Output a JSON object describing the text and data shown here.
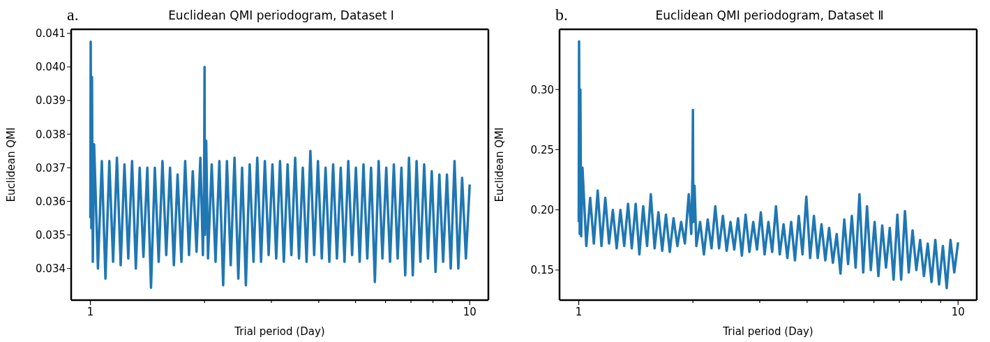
{
  "chart_data": [
    {
      "type": "line",
      "title": "Euclidean QMI periodogram, Dataset Ⅰ",
      "annotations": [
        "a."
      ],
      "xlabel": "Trial period (Day)",
      "ylabel": "Euclidean QMI",
      "log": "x",
      "x": [
        1,
        1.002,
        1.006,
        1.01,
        1.015,
        1.023,
        1.047,
        1.072,
        1.096,
        1.122,
        1.148,
        1.175,
        1.202,
        1.23,
        1.259,
        1.288,
        1.318,
        1.349,
        1.38,
        1.413,
        1.445,
        1.479,
        1.514,
        1.549,
        1.585,
        1.622,
        1.66,
        1.698,
        1.738,
        1.778,
        1.82,
        1.862,
        1.905,
        1.95,
        1.98,
        1.995,
        2.0,
        2.005,
        2.02,
        2.042,
        2.089,
        2.138,
        2.188,
        2.239,
        2.291,
        2.344,
        2.399,
        2.455,
        2.512,
        2.57,
        2.63,
        2.692,
        2.754,
        2.818,
        2.884,
        2.951,
        3.02,
        3.09,
        3.162,
        3.236,
        3.311,
        3.388,
        3.467,
        3.548,
        3.631,
        3.715,
        3.802,
        3.89,
        3.981,
        4.074,
        4.169,
        4.266,
        4.365,
        4.467,
        4.571,
        4.677,
        4.786,
        4.898,
        5.012,
        5.129,
        5.248,
        5.37,
        5.495,
        5.623,
        5.754,
        5.888,
        6.026,
        6.166,
        6.31,
        6.457,
        6.607,
        6.761,
        6.918,
        7.079,
        7.244,
        7.413,
        7.586,
        7.762,
        7.943,
        8.128,
        8.318,
        8.511,
        8.71,
        8.913,
        9.12,
        9.333,
        9.55,
        9.772,
        10
      ],
      "series": [
        {
          "color": "#1f77b4",
          "values": [
            0.0355,
            0.04075,
            0.0352,
            0.0397,
            0.0342,
            0.0377,
            0.034,
            0.0372,
            0.0337,
            0.0372,
            0.0342,
            0.0373,
            0.0341,
            0.0371,
            0.0343,
            0.0372,
            0.034,
            0.037,
            0.03435,
            0.037,
            0.03343,
            0.037,
            0.0342,
            0.0372,
            0.0344,
            0.037,
            0.0341,
            0.0368,
            0.0342,
            0.0372,
            0.0344,
            0.0369,
            0.0345,
            0.0373,
            0.0344,
            0.0366,
            0.04,
            0.035,
            0.0378,
            0.0343,
            0.0371,
            0.0342,
            0.0372,
            0.0335,
            0.0372,
            0.0341,
            0.0373,
            0.0337,
            0.037,
            0.0335,
            0.0371,
            0.0342,
            0.0373,
            0.0342,
            0.0372,
            0.0344,
            0.0371,
            0.0343,
            0.0372,
            0.0342,
            0.0371,
            0.0344,
            0.0373,
            0.0343,
            0.037,
            0.0342,
            0.0375,
            0.0344,
            0.0372,
            0.0343,
            0.037,
            0.0342,
            0.0371,
            0.0343,
            0.037,
            0.0342,
            0.0372,
            0.0344,
            0.037,
            0.0342,
            0.0371,
            0.0343,
            0.037,
            0.0336,
            0.0372,
            0.0343,
            0.037,
            0.0342,
            0.0371,
            0.0343,
            0.037,
            0.0338,
            0.0373,
            0.0338,
            0.0372,
            0.0342,
            0.0371,
            0.0343,
            0.0369,
            0.0339,
            0.0368,
            0.0342,
            0.0368,
            0.034,
            0.0372,
            0.034,
            0.0367,
            0.0343,
            0.0365
          ]
        }
      ],
      "xlim": [
        0.89,
        11.2
      ],
      "xticks": [
        {
          "value": 1,
          "label": "1"
        },
        {
          "value": 2,
          "label": null
        },
        {
          "value": 3,
          "label": null
        },
        {
          "value": 4,
          "label": null
        },
        {
          "value": 5,
          "label": null
        },
        {
          "value": 6,
          "label": null
        },
        {
          "value": 7,
          "label": null
        },
        {
          "value": 8,
          "label": null
        },
        {
          "value": 9,
          "label": null
        },
        {
          "value": 10,
          "label": "10"
        }
      ],
      "ylim": [
        0.03306,
        0.04112
      ],
      "yticks": [
        {
          "value": 0.034,
          "label": "0.034"
        },
        {
          "value": 0.035,
          "label": "0.035"
        },
        {
          "value": 0.036,
          "label": "0.036"
        },
        {
          "value": 0.037,
          "label": "0.037"
        },
        {
          "value": 0.038,
          "label": "0.038"
        },
        {
          "value": 0.039,
          "label": "0.039"
        },
        {
          "value": 0.04,
          "label": "0.040"
        },
        {
          "value": 0.041,
          "label": "0.041"
        }
      ]
    },
    {
      "type": "line",
      "title": "Euclidean QMI periodogram, Dataset Ⅱ",
      "annotations": [
        "b."
      ],
      "xlabel": "Trial period (Day)",
      "ylabel": "Euclidean QMI",
      "log": "x",
      "x": [
        1,
        1.002,
        1.006,
        1.01,
        1.015,
        1.023,
        1.047,
        1.072,
        1.096,
        1.122,
        1.148,
        1.175,
        1.202,
        1.23,
        1.259,
        1.288,
        1.318,
        1.349,
        1.38,
        1.413,
        1.445,
        1.479,
        1.514,
        1.549,
        1.585,
        1.622,
        1.66,
        1.698,
        1.738,
        1.778,
        1.82,
        1.862,
        1.905,
        1.95,
        1.98,
        1.995,
        2.0,
        2.005,
        2.02,
        2.042,
        2.089,
        2.138,
        2.188,
        2.239,
        2.291,
        2.344,
        2.399,
        2.455,
        2.512,
        2.57,
        2.63,
        2.692,
        2.754,
        2.818,
        2.884,
        2.951,
        3.02,
        3.09,
        3.162,
        3.236,
        3.311,
        3.388,
        3.467,
        3.548,
        3.631,
        3.715,
        3.802,
        3.89,
        3.981,
        4.074,
        4.169,
        4.266,
        4.365,
        4.467,
        4.571,
        4.677,
        4.786,
        4.898,
        5.012,
        5.129,
        5.248,
        5.37,
        5.495,
        5.623,
        5.754,
        5.888,
        6.026,
        6.166,
        6.31,
        6.457,
        6.607,
        6.761,
        6.918,
        7.079,
        7.244,
        7.413,
        7.586,
        7.762,
        7.943,
        8.128,
        8.318,
        8.511,
        8.71,
        8.913,
        9.12,
        9.333,
        9.55,
        9.772,
        10
      ],
      "series": [
        {
          "color": "#1f77b4",
          "values": [
            0.19,
            0.34,
            0.18,
            0.3,
            0.178,
            0.235,
            0.17,
            0.21,
            0.172,
            0.216,
            0.17,
            0.21,
            0.172,
            0.2,
            0.168,
            0.2,
            0.17,
            0.205,
            0.168,
            0.205,
            0.163,
            0.203,
            0.17,
            0.213,
            0.168,
            0.198,
            0.166,
            0.196,
            0.165,
            0.193,
            0.17,
            0.19,
            0.172,
            0.213,
            0.18,
            0.23,
            0.283,
            0.19,
            0.22,
            0.17,
            0.19,
            0.163,
            0.192,
            0.168,
            0.203,
            0.168,
            0.195,
            0.166,
            0.19,
            0.167,
            0.193,
            0.162,
            0.196,
            0.165,
            0.19,
            0.167,
            0.198,
            0.163,
            0.19,
            0.165,
            0.203,
            0.163,
            0.188,
            0.16,
            0.19,
            0.158,
            0.195,
            0.163,
            0.211,
            0.16,
            0.195,
            0.16,
            0.188,
            0.158,
            0.185,
            0.156,
            0.18,
            0.147,
            0.192,
            0.155,
            0.195,
            0.152,
            0.213,
            0.148,
            0.203,
            0.15,
            0.19,
            0.145,
            0.187,
            0.152,
            0.185,
            0.142,
            0.196,
            0.142,
            0.199,
            0.148,
            0.183,
            0.15,
            0.175,
            0.145,
            0.172,
            0.14,
            0.175,
            0.138,
            0.17,
            0.135,
            0.175,
            0.148,
            0.173
          ]
        }
      ],
      "xlim": [
        0.89,
        11.2
      ],
      "xticks": [
        {
          "value": 1,
          "label": "1"
        },
        {
          "value": 2,
          "label": null
        },
        {
          "value": 3,
          "label": null
        },
        {
          "value": 4,
          "label": null
        },
        {
          "value": 5,
          "label": null
        },
        {
          "value": 6,
          "label": null
        },
        {
          "value": 7,
          "label": null
        },
        {
          "value": 8,
          "label": null
        },
        {
          "value": 9,
          "label": null
        },
        {
          "value": 10,
          "label": "10"
        }
      ],
      "ylim": [
        0.125,
        0.35
      ],
      "yticks": [
        {
          "value": 0.15,
          "label": "0.15"
        },
        {
          "value": 0.2,
          "label": "0.20"
        },
        {
          "value": 0.25,
          "label": "0.25"
        },
        {
          "value": 0.3,
          "label": "0.30"
        }
      ]
    }
  ]
}
